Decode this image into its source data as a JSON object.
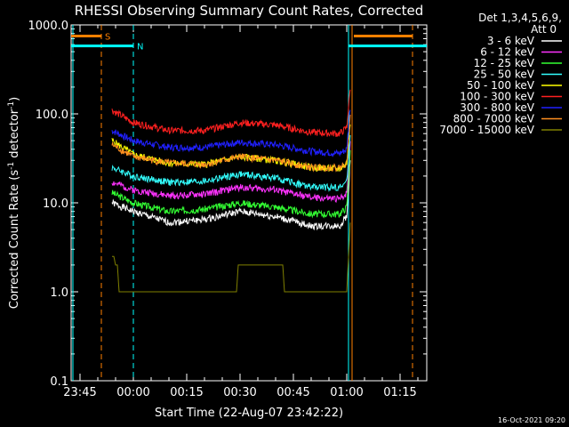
{
  "chart_data": {
    "type": "line",
    "title": "RHESSI Observing Summary Count Rates, Corrected",
    "xlabel": "Start Time (22-Aug-07 23:42:22)",
    "ylabel_main": "Corrected Count Rate (s",
    "ylabel_sup1": "-1",
    "ylabel_mid": " detector",
    "ylabel_sup2": "-1",
    "ylabel_end": ")",
    "y_scale": "log",
    "ylim": [
      0.1,
      1000
    ],
    "y_ticks": [
      {
        "value": 0.1,
        "label": "0.1"
      },
      {
        "value": 1,
        "label": "1.0"
      },
      {
        "value": 10,
        "label": "10.0"
      },
      {
        "value": 100,
        "label": "100.0"
      },
      {
        "value": 1000,
        "label": "1000.0"
      }
    ],
    "xlim_minutes": [
      -17.5,
      82.5
    ],
    "x_ticks": [
      {
        "value": -15,
        "label": "23:45"
      },
      {
        "value": 0,
        "label": "00:00"
      },
      {
        "value": 15,
        "label": "00:15"
      },
      {
        "value": 30,
        "label": "00:30"
      },
      {
        "value": 45,
        "label": "00:45"
      },
      {
        "value": 60,
        "label": "01:00"
      },
      {
        "value": 75,
        "label": "01:15"
      }
    ],
    "legend_header": [
      "Det 1,3,4,5,6,9,",
      "Att 0"
    ],
    "legend_placement": "top-right, outside plot",
    "series": [
      {
        "name": "3 - 6 keV",
        "color": "#ffffff",
        "x": [
          -6,
          0,
          10,
          20,
          30,
          40,
          50,
          58,
          60,
          61
        ],
        "values": [
          10,
          8,
          6,
          6.5,
          8,
          7,
          5.5,
          5.5,
          7,
          30
        ]
      },
      {
        "name": "6 - 12 keV",
        "color": "#ff33ff",
        "x": [
          -6,
          0,
          10,
          20,
          30,
          40,
          50,
          58,
          60,
          61
        ],
        "values": [
          17,
          14,
          12,
          12.5,
          15,
          14,
          11.5,
          11,
          13,
          50
        ]
      },
      {
        "name": "12 - 25 keV",
        "color": "#33ff33",
        "x": [
          -6,
          0,
          10,
          20,
          30,
          40,
          50,
          58,
          60,
          61
        ],
        "values": [
          13,
          10,
          8,
          8.5,
          10,
          9,
          7.5,
          7.5,
          9,
          40
        ]
      },
      {
        "name": "25 - 50 keV",
        "color": "#33ffff",
        "x": [
          -6,
          0,
          10,
          20,
          30,
          40,
          50,
          58,
          60,
          61
        ],
        "values": [
          25,
          20,
          17,
          17.5,
          21,
          19,
          15,
          15,
          17,
          60
        ]
      },
      {
        "name": "50 - 100 keV",
        "color": "#ffff00",
        "x": [
          -6,
          0,
          10,
          20,
          30,
          40,
          50,
          58,
          60,
          61
        ],
        "values": [
          50,
          35,
          28,
          27,
          33,
          30,
          25,
          24,
          28,
          80
        ]
      },
      {
        "name": "100 - 300 keV",
        "color": "#ff2020",
        "x": [
          -6,
          0,
          10,
          20,
          30,
          40,
          50,
          58,
          60,
          61
        ],
        "values": [
          110,
          80,
          65,
          65,
          80,
          75,
          62,
          60,
          70,
          200
        ]
      },
      {
        "name": "300 - 800 keV",
        "color": "#2020ff",
        "x": [
          -6,
          0,
          10,
          20,
          30,
          40,
          50,
          58,
          60,
          61
        ],
        "values": [
          65,
          50,
          42,
          42,
          48,
          45,
          38,
          36,
          40,
          120
        ]
      },
      {
        "name": "800 - 7000 keV",
        "color": "#ff9020",
        "x": [
          -6,
          0,
          10,
          20,
          30,
          40,
          50,
          58,
          60,
          61
        ],
        "values": [
          45,
          33,
          28,
          27,
          33,
          30,
          25,
          25,
          28,
          90
        ]
      },
      {
        "name": "7000 - 15000 keV",
        "color": "#808000",
        "x": [
          -6,
          -5.5,
          -5,
          -4.5,
          -4,
          0,
          29,
          29.5,
          42,
          42.5,
          60,
          61
        ],
        "values": [
          2.5,
          2.5,
          2,
          2,
          1,
          1,
          1,
          2,
          2,
          1,
          1,
          6
        ]
      }
    ],
    "markers": [
      {
        "label": "S",
        "color": "#ff8000",
        "x_start": -17.5,
        "x_end": -9,
        "value": 750
      },
      {
        "label": "N",
        "color": "#00ffff",
        "x_start": -17.5,
        "x_end": 0,
        "value": 580
      }
    ],
    "vertical_lines": [
      {
        "x": -17,
        "color": "#00ffff",
        "style": "solid"
      },
      {
        "x": -9,
        "color": "#ff8000",
        "style": "dashed"
      },
      {
        "x": 0,
        "color": "#00ffff",
        "style": "dashed"
      },
      {
        "x": 60.5,
        "color": "#00ffff",
        "style": "solid"
      },
      {
        "x": 61.5,
        "color": "#ff8000",
        "style": "solid"
      },
      {
        "x": 78.5,
        "color": "#ff8000",
        "style": "dashed"
      }
    ],
    "right_bars": [
      {
        "color": "#ff8000",
        "x_start": 62,
        "x_end": 78.5,
        "value": 750
      },
      {
        "color": "#00ffff",
        "x_start": 60.5,
        "x_end": 82.5,
        "value": 580
      }
    ],
    "footer_timestamp": "16-Oct-2021 09:20"
  }
}
